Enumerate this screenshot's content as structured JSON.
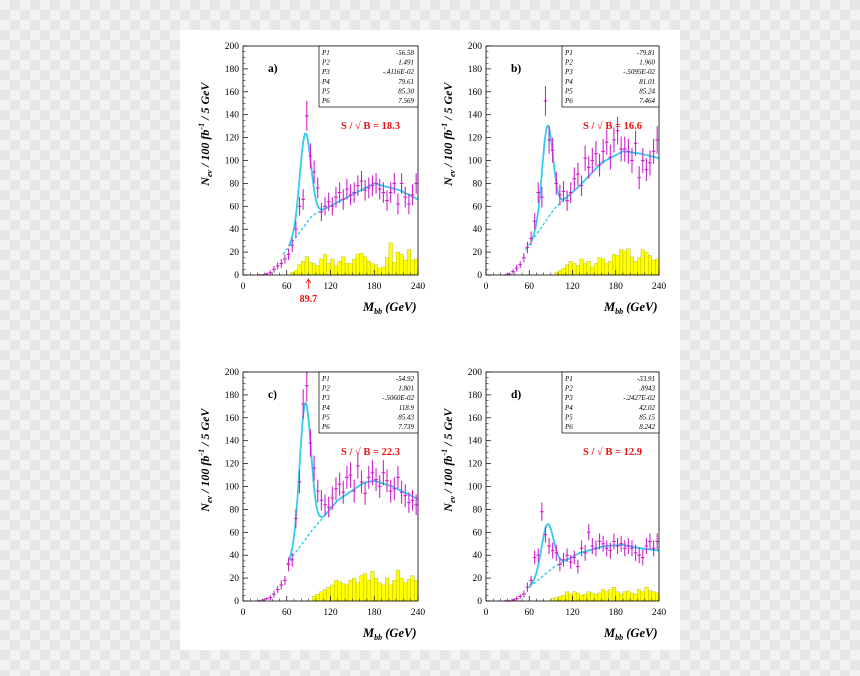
{
  "chart_data": [
    {
      "type": "histogram",
      "panel_label": "a)",
      "xlabel": "M_bb (GeV)",
      "ylabel": "N_ev / 100 fb^-1 / 5 GeV",
      "xlim": [
        0,
        240
      ],
      "ylim": [
        0,
        200
      ],
      "x_ticks": [
        0,
        60,
        120,
        180,
        240
      ],
      "y_ticks": [
        0,
        20,
        40,
        60,
        80,
        100,
        120,
        140,
        160,
        180,
        200
      ],
      "fit_params": [
        {
          "name": "P1",
          "value": "-56.58"
        },
        {
          "name": "P2",
          "value": "1.491"
        },
        {
          "name": "P3",
          "value": "-.4116E-02"
        },
        {
          "name": "P4",
          "value": "79.61"
        },
        {
          "name": "P5",
          "value": "85.30"
        },
        {
          "name": "P6",
          "value": "7.569"
        }
      ],
      "significance": "S / √ B = 18.3",
      "marker": {
        "label": "89.7",
        "x": 89.7
      },
      "peak": {
        "amp": 79.61,
        "mean": 85.3,
        "sigma": 7.569
      },
      "bkg_y": [
        [
          55,
          18
        ],
        [
          95,
          52
        ],
        [
          125,
          62
        ],
        [
          180,
          80
        ],
        [
          215,
          74
        ],
        [
          240,
          66
        ]
      ],
      "signal_points": {
        "x": [
          22.5,
          27.5,
          32.5,
          37.5,
          42.5,
          47.5,
          52.5,
          57.5,
          62.5,
          67.5,
          72.5,
          77.5,
          82.5,
          87.5,
          92.5,
          97.5,
          102.5,
          107.5,
          112.5,
          117.5,
          122.5,
          127.5,
          132.5,
          137.5,
          142.5,
          147.5,
          152.5,
          157.5,
          162.5,
          167.5,
          172.5,
          177.5,
          182.5,
          187.5,
          192.5,
          197.5,
          202.5,
          207.5,
          212.5,
          217.5,
          222.5,
          227.5,
          232.5,
          237.5
        ],
        "y": [
          0,
          0,
          1,
          2,
          5,
          8,
          10,
          14,
          18,
          26,
          40,
          60,
          66,
          139,
          104,
          90,
          76,
          55,
          60,
          64,
          60,
          68,
          72,
          66,
          75,
          70,
          72,
          78,
          82,
          74,
          76,
          78,
          80,
          75,
          72,
          65,
          72,
          80,
          62,
          80,
          68,
          62,
          70,
          80
        ],
        "err": [
          1,
          1,
          1,
          2,
          3,
          3,
          4,
          4,
          5,
          6,
          7,
          8,
          9,
          13,
          11,
          10,
          9,
          8,
          8,
          8,
          8,
          9,
          9,
          9,
          9,
          9,
          9,
          9,
          9,
          9,
          9,
          9,
          9,
          9,
          9,
          9,
          9,
          9,
          9,
          9,
          9,
          9,
          9,
          9
        ]
      },
      "bkg_hist": [
        0,
        0,
        0,
        0,
        0,
        0,
        0,
        0,
        0,
        0,
        0,
        0,
        0,
        2,
        4,
        9,
        12,
        16,
        11,
        10,
        8,
        14,
        18,
        10,
        14,
        8,
        12,
        16,
        10,
        10,
        14,
        18,
        19,
        16,
        12,
        10,
        9,
        6,
        7,
        15,
        28,
        11,
        20,
        18,
        13,
        22,
        13,
        14
      ]
    },
    {
      "type": "histogram",
      "panel_label": "b)",
      "xlabel": "M_bb (GeV)",
      "ylabel": "N_ev / 100 fb^-1 / 5 GeV",
      "xlim": [
        0,
        240
      ],
      "ylim": [
        0,
        200
      ],
      "x_ticks": [
        0,
        60,
        120,
        180,
        240
      ],
      "y_ticks": [
        0,
        20,
        40,
        60,
        80,
        100,
        120,
        140,
        160,
        180,
        200
      ],
      "fit_params": [
        {
          "name": "P1",
          "value": "-79.81"
        },
        {
          "name": "P2",
          "value": "1.960"
        },
        {
          "name": "P3",
          "value": "-.5095E-02"
        },
        {
          "name": "P4",
          "value": "81.01"
        },
        {
          "name": "P5",
          "value": "85.24"
        },
        {
          "name": "P6",
          "value": "7.464"
        }
      ],
      "significance": "S / √ B = 16.6",
      "peak": {
        "amp": 81.01,
        "mean": 85.24,
        "sigma": 7.464
      },
      "bkg_y": [
        [
          55,
          22
        ],
        [
          95,
          58
        ],
        [
          130,
          78
        ],
        [
          160,
          98
        ],
        [
          190,
          108
        ],
        [
          215,
          106
        ],
        [
          240,
          102
        ]
      ],
      "signal_points": {
        "x": [
          27.5,
          32.5,
          37.5,
          42.5,
          47.5,
          52.5,
          57.5,
          62.5,
          67.5,
          72.5,
          77.5,
          82.5,
          87.5,
          92.5,
          97.5,
          102.5,
          107.5,
          112.5,
          117.5,
          122.5,
          127.5,
          132.5,
          137.5,
          142.5,
          147.5,
          152.5,
          157.5,
          162.5,
          167.5,
          172.5,
          177.5,
          182.5,
          187.5,
          192.5,
          197.5,
          202.5,
          207.5,
          212.5,
          217.5,
          222.5,
          227.5,
          232.5,
          237.5
        ],
        "y": [
          0,
          1,
          3,
          6,
          9,
          15,
          24,
          32,
          47,
          72,
          68,
          152,
          118,
          109,
          80,
          70,
          73,
          65,
          72,
          84,
          88,
          78,
          102,
          94,
          100,
          106,
          96,
          108,
          116,
          103,
          118,
          126,
          110,
          110,
          108,
          100,
          115,
          85,
          100,
          92,
          98,
          108,
          118
        ],
        "err": [
          1,
          1,
          2,
          3,
          3,
          4,
          5,
          6,
          7,
          9,
          9,
          13,
          12,
          11,
          10,
          9,
          9,
          9,
          9,
          10,
          10,
          9,
          11,
          10,
          11,
          11,
          10,
          11,
          11,
          11,
          11,
          12,
          11,
          11,
          11,
          11,
          11,
          10,
          11,
          10,
          11,
          11,
          12
        ]
      },
      "bkg_hist": [
        0,
        0,
        0,
        0,
        0,
        0,
        0,
        0,
        0,
        0,
        0,
        0,
        0,
        0,
        0,
        0,
        0,
        0,
        0,
        2,
        4,
        6,
        9,
        12,
        10,
        8,
        14,
        10,
        12,
        7,
        10,
        15,
        14,
        10,
        12,
        18,
        17,
        22,
        21,
        23,
        16,
        12,
        15,
        22,
        20,
        17,
        13,
        14
      ]
    },
    {
      "type": "histogram",
      "panel_label": "c)",
      "xlabel": "M_bb (GeV)",
      "ylabel": "N_ev / 100 fb^-1 / 5 GeV",
      "xlim": [
        0,
        240
      ],
      "ylim": [
        0,
        200
      ],
      "x_ticks": [
        0,
        60,
        120,
        180,
        240
      ],
      "y_ticks": [
        0,
        20,
        40,
        60,
        80,
        100,
        120,
        140,
        160,
        180,
        200
      ],
      "fit_params": [
        {
          "name": "P1",
          "value": "-54.92"
        },
        {
          "name": "P2",
          "value": "1.801"
        },
        {
          "name": "P3",
          "value": "-.5060E-02"
        },
        {
          "name": "P4",
          "value": "118.9"
        },
        {
          "name": "P5",
          "value": "85.43"
        },
        {
          "name": "P6",
          "value": "7.739"
        }
      ],
      "significance": "S / √ B = 22.3",
      "peak": {
        "amp": 118.9,
        "mean": 85.43,
        "sigma": 7.739
      },
      "bkg_y": [
        [
          60,
          32
        ],
        [
          95,
          62
        ],
        [
          130,
          88
        ],
        [
          165,
          103
        ],
        [
          180,
          105
        ],
        [
          205,
          100
        ],
        [
          240,
          89
        ]
      ],
      "signal_points": {
        "x": [
          22.5,
          27.5,
          32.5,
          37.5,
          42.5,
          47.5,
          52.5,
          57.5,
          62.5,
          67.5,
          72.5,
          77.5,
          82.5,
          87.5,
          92.5,
          97.5,
          102.5,
          107.5,
          112.5,
          117.5,
          122.5,
          127.5,
          132.5,
          137.5,
          142.5,
          147.5,
          152.5,
          157.5,
          162.5,
          167.5,
          172.5,
          177.5,
          182.5,
          187.5,
          192.5,
          197.5,
          202.5,
          207.5,
          212.5,
          217.5,
          222.5,
          227.5,
          232.5,
          237.5
        ],
        "y": [
          0,
          1,
          2,
          3,
          6,
          10,
          14,
          18,
          32,
          36,
          72,
          104,
          172,
          188,
          138,
          116,
          96,
          88,
          84,
          82,
          90,
          98,
          102,
          95,
          108,
          110,
          96,
          118,
          104,
          94,
          108,
          112,
          106,
          100,
          112,
          105,
          96,
          98,
          108,
          95,
          92,
          86,
          88,
          84
        ],
        "err": [
          1,
          1,
          1,
          2,
          3,
          3,
          4,
          4,
          6,
          6,
          8,
          10,
          13,
          14,
          12,
          11,
          10,
          9,
          9,
          9,
          10,
          10,
          10,
          10,
          10,
          11,
          10,
          11,
          10,
          10,
          10,
          11,
          10,
          10,
          11,
          10,
          10,
          10,
          10,
          10,
          10,
          9,
          9,
          9
        ]
      },
      "bkg_hist": [
        0,
        0,
        0,
        0,
        0,
        0,
        0,
        0,
        0,
        0,
        0,
        0,
        0,
        0,
        0,
        0,
        0,
        0,
        0,
        4,
        6,
        8,
        10,
        12,
        14,
        18,
        17,
        15,
        14,
        18,
        20,
        16,
        22,
        24,
        18,
        26,
        20,
        16,
        14,
        20,
        14,
        18,
        27,
        20,
        16,
        19,
        22,
        18
      ]
    },
    {
      "type": "histogram",
      "panel_label": "d)",
      "xlabel": "M_bb (GeV)",
      "ylabel": "N_ev / 100 fb^-1 / 5 GeV",
      "xlim": [
        0,
        240
      ],
      "ylim": [
        0,
        200
      ],
      "x_ticks": [
        0,
        60,
        120,
        180,
        240
      ],
      "y_ticks": [
        0,
        20,
        40,
        60,
        80,
        100,
        120,
        140,
        160,
        180,
        200
      ],
      "fit_params": [
        {
          "name": "P1",
          "value": "-33.91"
        },
        {
          "name": "P2",
          "value": ".8943"
        },
        {
          "name": "P3",
          "value": "-.2427E-02"
        },
        {
          "name": "P4",
          "value": "42.02"
        },
        {
          "name": "P5",
          "value": "85.15"
        },
        {
          "name": "P6",
          "value": "8.242"
        }
      ],
      "significance": "S / √ B = 12.9",
      "peak": {
        "amp": 42.02,
        "mean": 85.15,
        "sigma": 8.242
      },
      "bkg_y": [
        [
          60,
          12
        ],
        [
          95,
          30
        ],
        [
          130,
          42
        ],
        [
          165,
          48
        ],
        [
          190,
          49
        ],
        [
          215,
          46
        ],
        [
          240,
          44
        ]
      ],
      "signal_points": {
        "x": [
          27.5,
          32.5,
          37.5,
          42.5,
          47.5,
          52.5,
          57.5,
          62.5,
          67.5,
          72.5,
          77.5,
          82.5,
          87.5,
          92.5,
          97.5,
          102.5,
          107.5,
          112.5,
          117.5,
          122.5,
          127.5,
          132.5,
          137.5,
          142.5,
          147.5,
          152.5,
          157.5,
          162.5,
          167.5,
          172.5,
          177.5,
          182.5,
          187.5,
          192.5,
          197.5,
          202.5,
          207.5,
          212.5,
          217.5,
          222.5,
          227.5,
          232.5,
          237.5
        ],
        "y": [
          0,
          0,
          1,
          2,
          4,
          6,
          12,
          18,
          38,
          40,
          78,
          58,
          48,
          44,
          42,
          32,
          36,
          40,
          34,
          38,
          30,
          46,
          42,
          60,
          48,
          46,
          52,
          50,
          46,
          44,
          52,
          48,
          50,
          46,
          48,
          46,
          42,
          40,
          38,
          48,
          52,
          46,
          52
        ],
        "err": [
          1,
          1,
          1,
          2,
          2,
          3,
          4,
          4,
          6,
          6,
          8,
          7,
          7,
          7,
          7,
          6,
          6,
          6,
          6,
          6,
          6,
          7,
          7,
          7,
          7,
          7,
          7,
          7,
          7,
          7,
          7,
          7,
          7,
          7,
          7,
          7,
          7,
          7,
          7,
          7,
          7,
          7,
          7
        ]
      },
      "bkg_hist": [
        0,
        0,
        0,
        0,
        0,
        0,
        0,
        0,
        0,
        0,
        0,
        0,
        0,
        0,
        0,
        0,
        0,
        0,
        2,
        3,
        4,
        5,
        8,
        6,
        8,
        7,
        5,
        6,
        8,
        7,
        6,
        7,
        10,
        8,
        10,
        12,
        8,
        6,
        8,
        9,
        7,
        6,
        10,
        8,
        12,
        9,
        8,
        7
      ]
    }
  ]
}
